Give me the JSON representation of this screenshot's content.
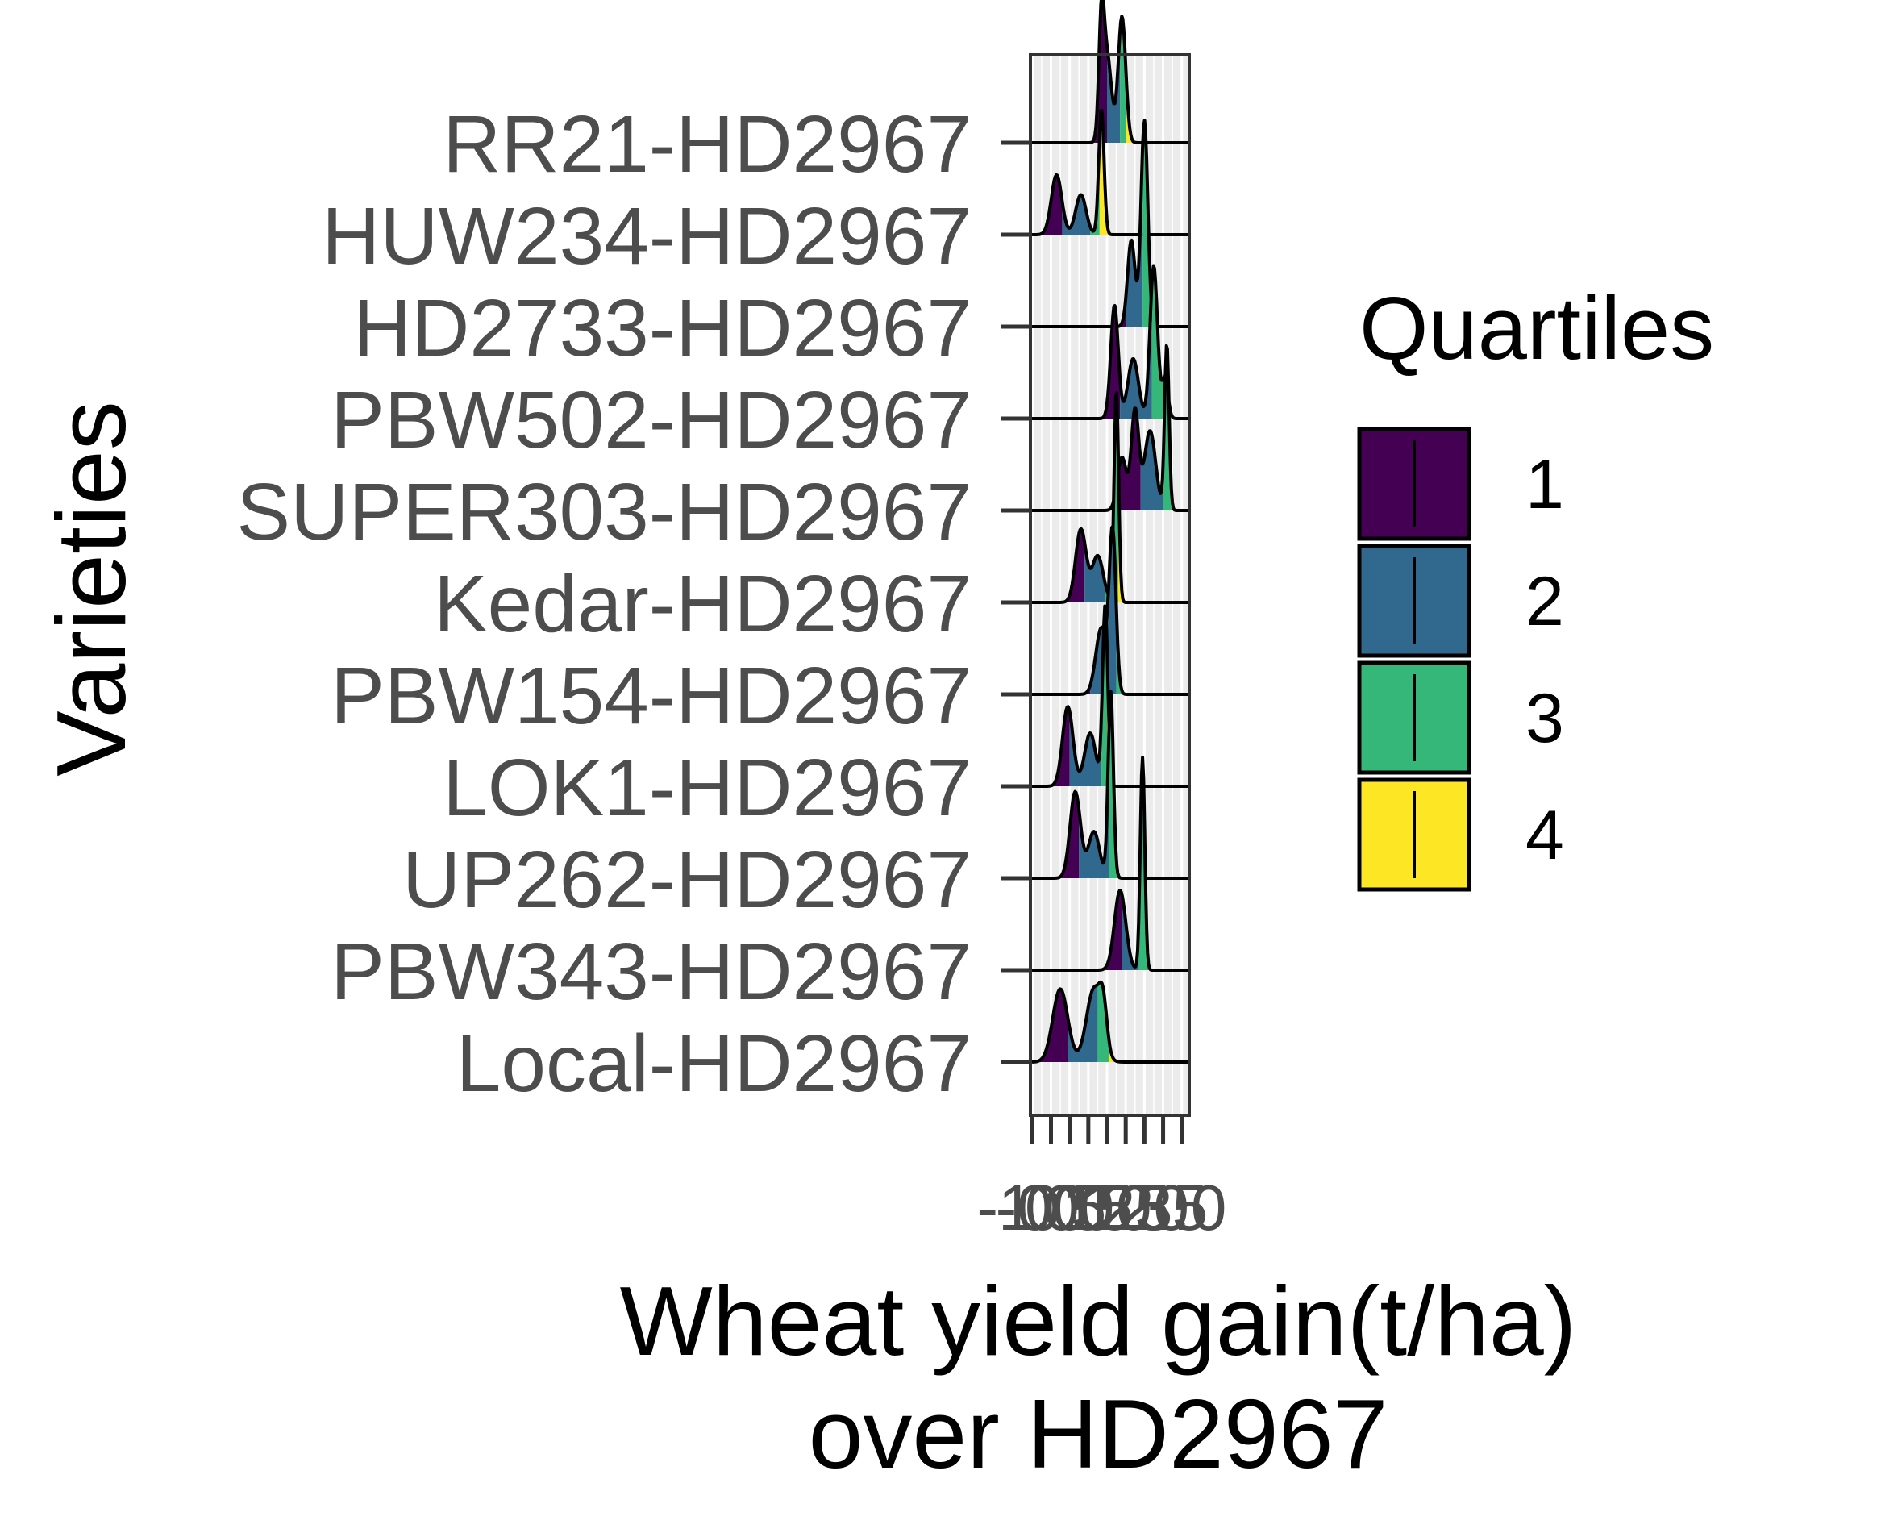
{
  "chart_data": {
    "type": "ridgeline",
    "xlabel_lines": [
      "Wheat yield gain(t/ha)",
      "over HD2967"
    ],
    "ylabel": "Varieties",
    "xlim": [
      -1.05,
      3.2
    ],
    "x_ticks": [
      -1.0,
      -0.5,
      0.0,
      0.5,
      1.0,
      1.5,
      2.0,
      2.5,
      3.0
    ],
    "x_tick_labels": [
      "-1.0",
      "-0.5",
      "0.0",
      "0.5",
      "1.0",
      "1.5",
      "2.0",
      "2.5",
      "3.0"
    ],
    "categories": [
      "Local-HD2967",
      "PBW343-HD2967",
      "UP262-HD2967",
      "LOK1-HD2967",
      "PBW154-HD2967",
      "Kedar-HD2967",
      "SUPER303-HD2967",
      "PBW502-HD2967",
      "HD2733-HD2967",
      "HUW234-HD2967",
      "RR21-HD2967"
    ],
    "ridges": [
      {
        "name": "Local-HD2967",
        "q": [
          -0.05,
          0.75,
          1.05
        ],
        "peaks": [
          [
            -0.25,
            0.2,
            0.55
          ],
          [
            0.65,
            0.2,
            0.55
          ],
          [
            0.9,
            0.1,
            0.3
          ]
        ]
      },
      {
        "name": "PBW343-HD2967",
        "q": [
          1.4,
          1.85,
          2.25
        ],
        "peaks": [
          [
            1.35,
            0.15,
            0.6
          ],
          [
            1.95,
            0.06,
            1.6
          ]
        ]
      },
      {
        "name": "UP262-HD2967",
        "q": [
          0.25,
          1.05,
          1.3
        ],
        "peaks": [
          [
            0.15,
            0.14,
            0.65
          ],
          [
            0.65,
            0.15,
            0.35
          ],
          [
            1.1,
            0.07,
            1.4
          ]
        ]
      },
      {
        "name": "LOK1-HD2967",
        "q": [
          0.0,
          0.85,
          1.0
        ],
        "peaks": [
          [
            -0.05,
            0.14,
            0.6
          ],
          [
            0.55,
            0.15,
            0.4
          ],
          [
            0.95,
            0.07,
            1.35
          ]
        ]
      },
      {
        "name": "PBW154-HD2967",
        "q": [
          0.55,
          1.25,
          1.45
        ],
        "peaks": [
          [
            0.85,
            0.15,
            0.5
          ],
          [
            1.15,
            0.09,
            1.2
          ]
        ]
      },
      {
        "name": "Kedar-HD2967",
        "q": [
          0.4,
          0.95,
          1.3
        ],
        "peaks": [
          [
            0.3,
            0.14,
            0.55
          ],
          [
            0.75,
            0.15,
            0.35
          ],
          [
            1.25,
            0.06,
            1.6
          ]
        ]
      },
      {
        "name": "SUPER303-HD2967",
        "q": [
          1.9,
          2.5,
          2.8
        ],
        "peaks": [
          [
            1.4,
            0.12,
            0.4
          ],
          [
            1.75,
            0.1,
            0.75
          ],
          [
            2.15,
            0.15,
            0.6
          ],
          [
            2.6,
            0.06,
            1.25
          ]
        ]
      },
      {
        "name": "PBW502-HD2967",
        "q": [
          1.35,
          2.2,
          2.65
        ],
        "peaks": [
          [
            1.2,
            0.1,
            0.85
          ],
          [
            1.7,
            0.14,
            0.45
          ],
          [
            2.25,
            0.1,
            1.15
          ],
          [
            2.55,
            0.08,
            0.3
          ]
        ]
      },
      {
        "name": "HD2733-HD2967",
        "q": [
          1.5,
          1.95,
          2.15
        ],
        "peaks": [
          [
            1.65,
            0.1,
            0.65
          ],
          [
            2.0,
            0.09,
            1.55
          ]
        ]
      },
      {
        "name": "HUW234-HD2967",
        "q": [
          -0.2,
          0.55,
          0.8
        ],
        "peaks": [
          [
            -0.35,
            0.14,
            0.45
          ],
          [
            0.3,
            0.14,
            0.3
          ],
          [
            0.85,
            0.07,
            0.95
          ]
        ]
      },
      {
        "name": "RR21-HD2967",
        "q": [
          1.0,
          1.35,
          1.5
        ],
        "peaks": [
          [
            0.85,
            0.07,
            0.8
          ],
          [
            1.0,
            0.12,
            0.65
          ],
          [
            1.4,
            0.1,
            0.95
          ]
        ]
      }
    ],
    "ridge_scale_note_hidden": true,
    "legend": {
      "title": "Quartiles",
      "entries": [
        {
          "label": "1",
          "color": "#440154"
        },
        {
          "label": "2",
          "color": "#31688E"
        },
        {
          "label": "3",
          "color": "#35B779"
        },
        {
          "label": "4",
          "color": "#FDE725"
        }
      ]
    },
    "panel_background": "#ebebeb",
    "grid": true,
    "legend_position": "right"
  }
}
